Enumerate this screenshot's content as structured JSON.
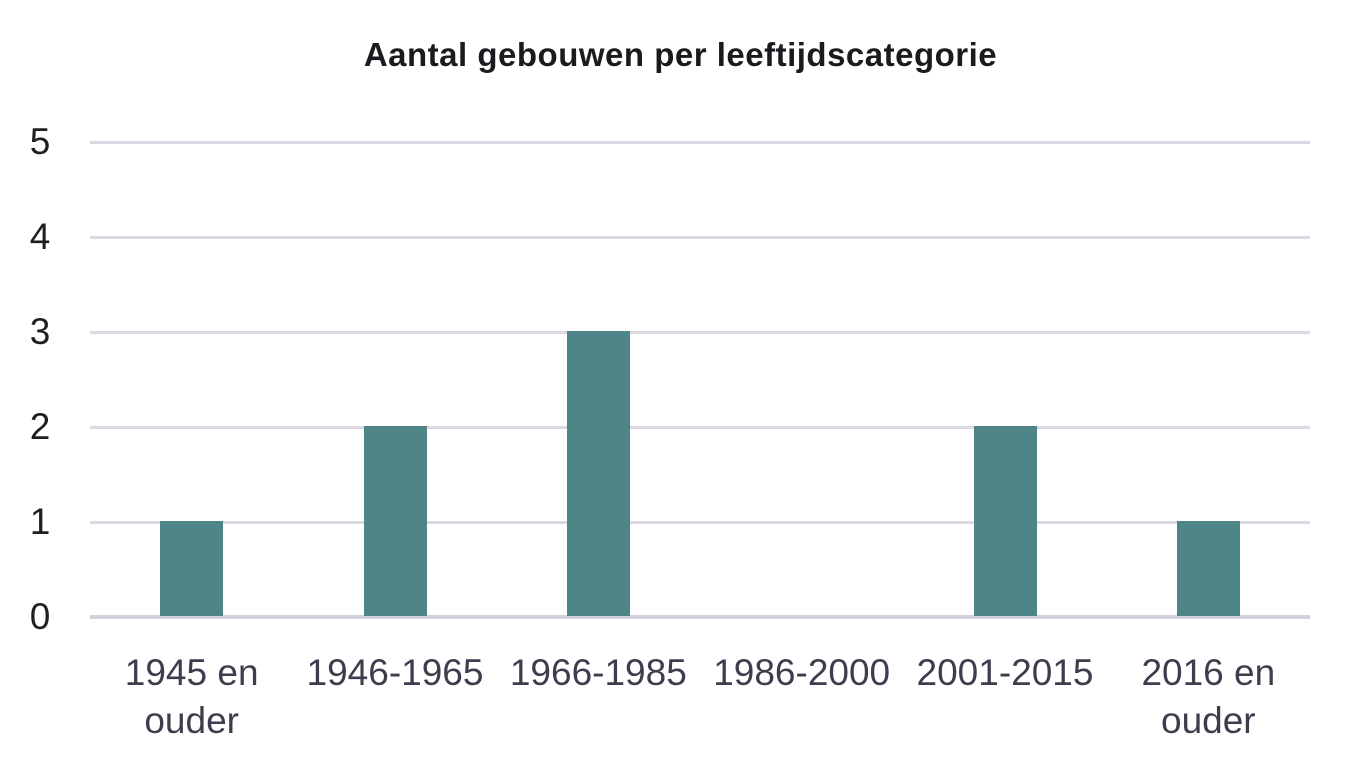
{
  "chart_data": {
    "type": "bar",
    "title": "Aantal gebouwen per leeftijdscategorie",
    "categories": [
      "1945 en\nouder",
      "1946-1965",
      "1966-1985",
      "1986-2000",
      "2001-2015",
      "2016 en\nouder"
    ],
    "values": [
      1,
      2,
      3,
      0,
      2,
      1
    ],
    "xlabel": "",
    "ylabel": "",
    "ylim": [
      0,
      5
    ],
    "yticks": [
      5,
      4,
      3,
      2,
      1,
      0
    ],
    "grid": "horizontal",
    "legend": "none",
    "colors": {
      "bar": "#4e8688",
      "gridline": "#dcd8e2",
      "baseline": "#d5d0dc",
      "title": "#1b1b1f",
      "ytick": "#1f1f23",
      "xtick": "#3e3d4d",
      "background": "#ffffff"
    }
  }
}
